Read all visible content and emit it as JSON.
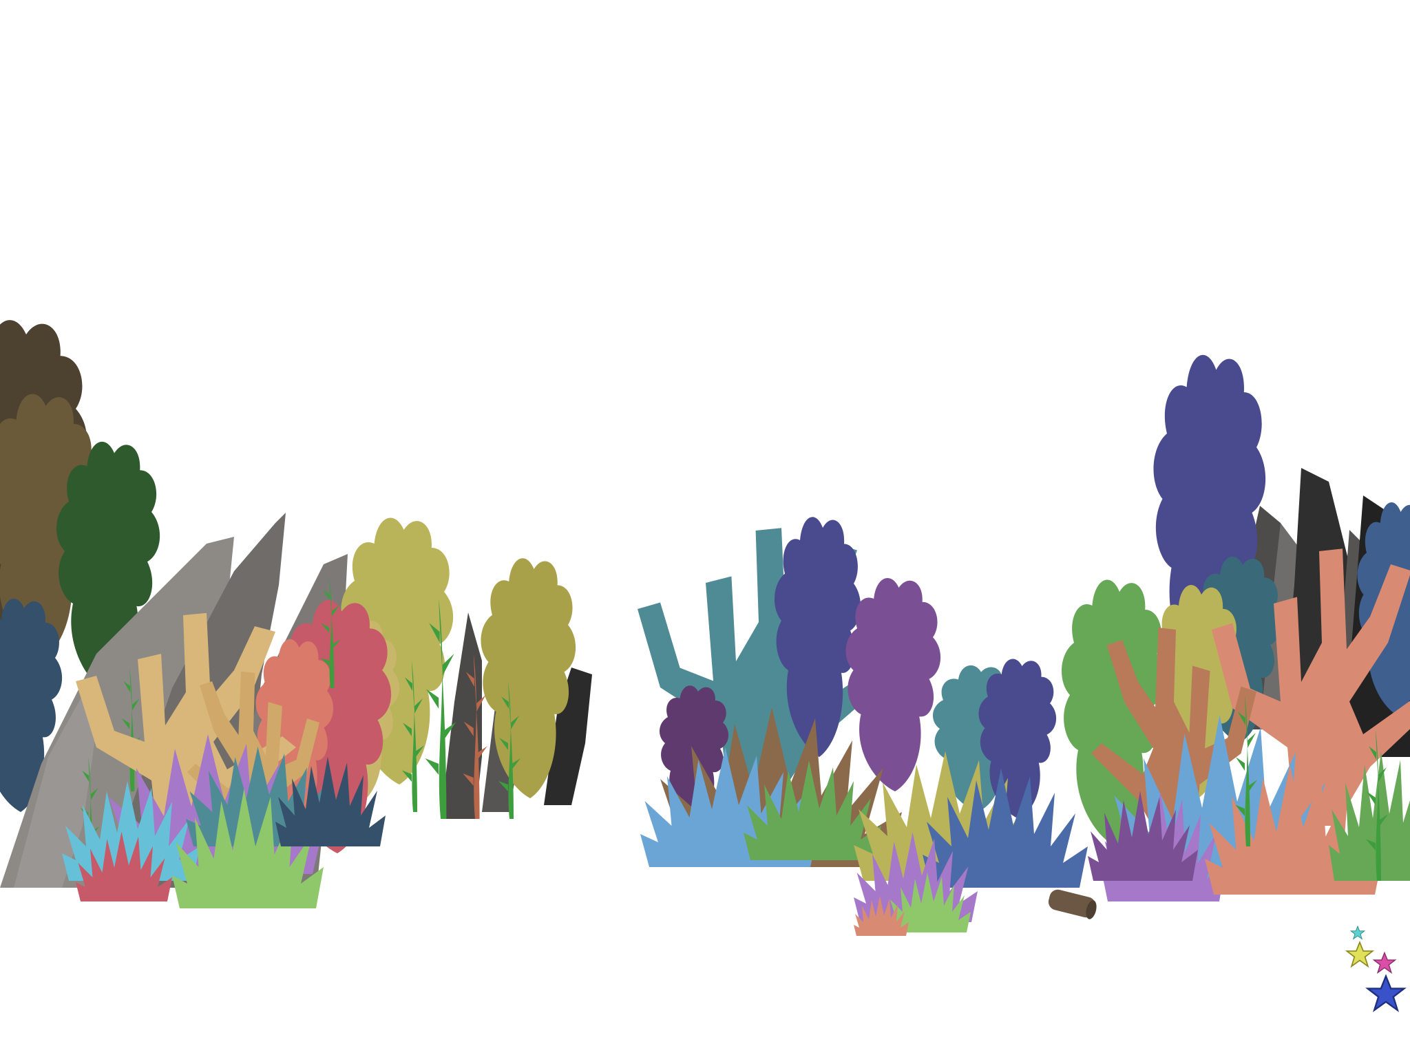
{
  "scene": {
    "background_color": "#ffffff",
    "palette": {
      "rock_light": "#8d8a86",
      "rock_mid": "#6f6c69",
      "rock_dark": "#3f3e3d",
      "rock_black": "#2b2b2b",
      "coral_tan": "#d9b77a",
      "coral_brown": "#8a6a4a",
      "coral_violet": "#a678c9",
      "coral_cyan": "#66c1d8",
      "coral_lime": "#8fc76b",
      "coral_pink": "#c65a68",
      "coral_olive": "#b9b35a",
      "coral_teal": "#4f8b95",
      "coral_indigo": "#4a4a8e",
      "coral_purple": "#7b4f93",
      "coral_salmon": "#d98a72",
      "coral_blue": "#6aa5d6",
      "coral_green": "#66a856",
      "kelp_green": "#3e9e3e",
      "starfish_cyan": "#5fd0d0",
      "starfish_yellow": "#e1e05a",
      "starfish_magenta": "#d94fa8",
      "starfish_blue": "#3a52c9",
      "log_brown": "#6b5744"
    },
    "starfish": [
      {
        "id": "starfish-cyan",
        "color_key": "starfish_cyan"
      },
      {
        "id": "starfish-yellow",
        "color_key": "starfish_yellow"
      },
      {
        "id": "starfish-magenta",
        "color_key": "starfish_magenta"
      },
      {
        "id": "starfish-blue",
        "color_key": "starfish_blue"
      }
    ]
  }
}
